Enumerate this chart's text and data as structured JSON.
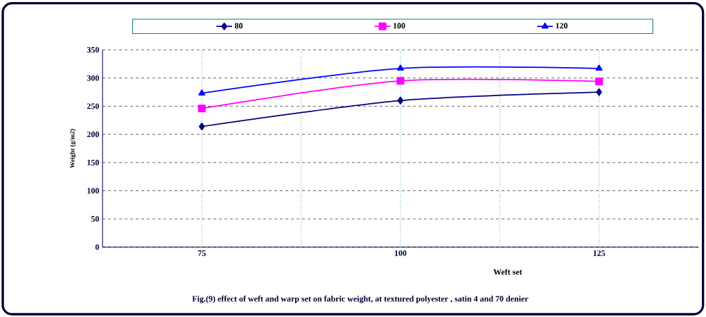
{
  "chart_data": {
    "type": "line",
    "annotations": [
      "Fig.(9) effect of weft  and  warp set on fabric weight, at  textured polyester , satin 4 and 70 denier"
    ],
    "xlabel": "Weft set",
    "ylabel": "Weight (g/m2)",
    "categories": [
      "75",
      "100",
      "125"
    ],
    "series": [
      {
        "name": "80",
        "color": "#000080",
        "marker": "diamond",
        "values": [
          214,
          260,
          275
        ]
      },
      {
        "name": "100",
        "color": "#ff00ff",
        "marker": "square",
        "values": [
          246,
          295,
          294
        ]
      },
      {
        "name": "120",
        "color": "#0000ff",
        "marker": "triangle",
        "values": [
          273,
          317,
          317
        ]
      }
    ],
    "ylim": [
      0,
      350
    ],
    "yticks": [
      0,
      50,
      100,
      150,
      200,
      250,
      300,
      350
    ],
    "grid": true,
    "legend": "top",
    "line_style": "solid"
  }
}
